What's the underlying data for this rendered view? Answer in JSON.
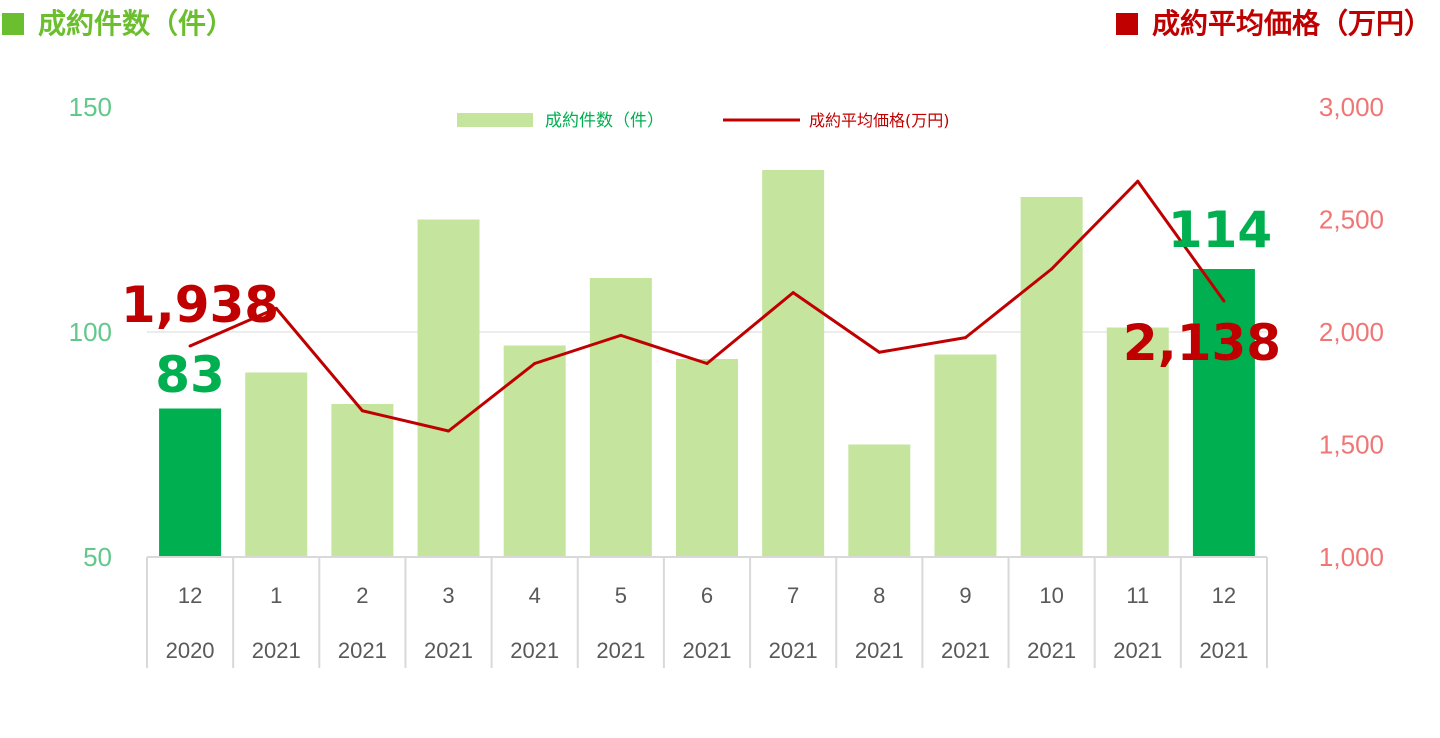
{
  "headings": {
    "left": "成約件数（件）",
    "right": "成約平均価格（万円）"
  },
  "legend": {
    "bar": "成約件数（件）",
    "line": "成約平均価格(万円)"
  },
  "colors": {
    "bar": "#c5e59f",
    "bar_highlight": "#00b050",
    "line": "#c00000",
    "left_axis": "#62c88a",
    "right_axis": "#f07676",
    "left_heading": "#6bbf2e",
    "right_heading": "#c00000",
    "grid": "#d9d9d9"
  },
  "chart_data": {
    "type": "bar",
    "categories": [
      {
        "month": "12",
        "year": "2020"
      },
      {
        "month": "1",
        "year": "2021"
      },
      {
        "month": "2",
        "year": "2021"
      },
      {
        "month": "3",
        "year": "2021"
      },
      {
        "month": "4",
        "year": "2021"
      },
      {
        "month": "5",
        "year": "2021"
      },
      {
        "month": "6",
        "year": "2021"
      },
      {
        "month": "7",
        "year": "2021"
      },
      {
        "month": "8",
        "year": "2021"
      },
      {
        "month": "9",
        "year": "2021"
      },
      {
        "month": "10",
        "year": "2021"
      },
      {
        "month": "11",
        "year": "2021"
      },
      {
        "month": "12",
        "year": "2021"
      }
    ],
    "series": [
      {
        "name": "成約件数（件）",
        "type": "bar",
        "axis": "left",
        "values": [
          83,
          91,
          84,
          125,
          97,
          112,
          94,
          136,
          75,
          95,
          130,
          101,
          114
        ],
        "highlight": [
          0,
          12
        ]
      },
      {
        "name": "成約平均価格(万円)",
        "type": "line",
        "axis": "right",
        "values": [
          1938,
          2105,
          1650,
          1560,
          1860,
          1985,
          1860,
          2175,
          1910,
          1975,
          2280,
          2670,
          2138
        ]
      }
    ],
    "y_left": {
      "min": 50,
      "max": 150,
      "ticks": [
        "50",
        "100",
        "150"
      ]
    },
    "y_right": {
      "min": 1000,
      "max": 3000,
      "ticks": [
        "1,000",
        "1,500",
        "2,000",
        "2,500",
        "3,000"
      ]
    },
    "annotations": [
      {
        "series": "line",
        "index": 0,
        "text": "1,938"
      },
      {
        "series": "bar",
        "index": 0,
        "text": "83"
      },
      {
        "series": "bar",
        "index": 12,
        "text": "114"
      },
      {
        "series": "line",
        "index": 12,
        "text": "2,138"
      }
    ],
    "grid": true,
    "legend_position": "top-center"
  }
}
